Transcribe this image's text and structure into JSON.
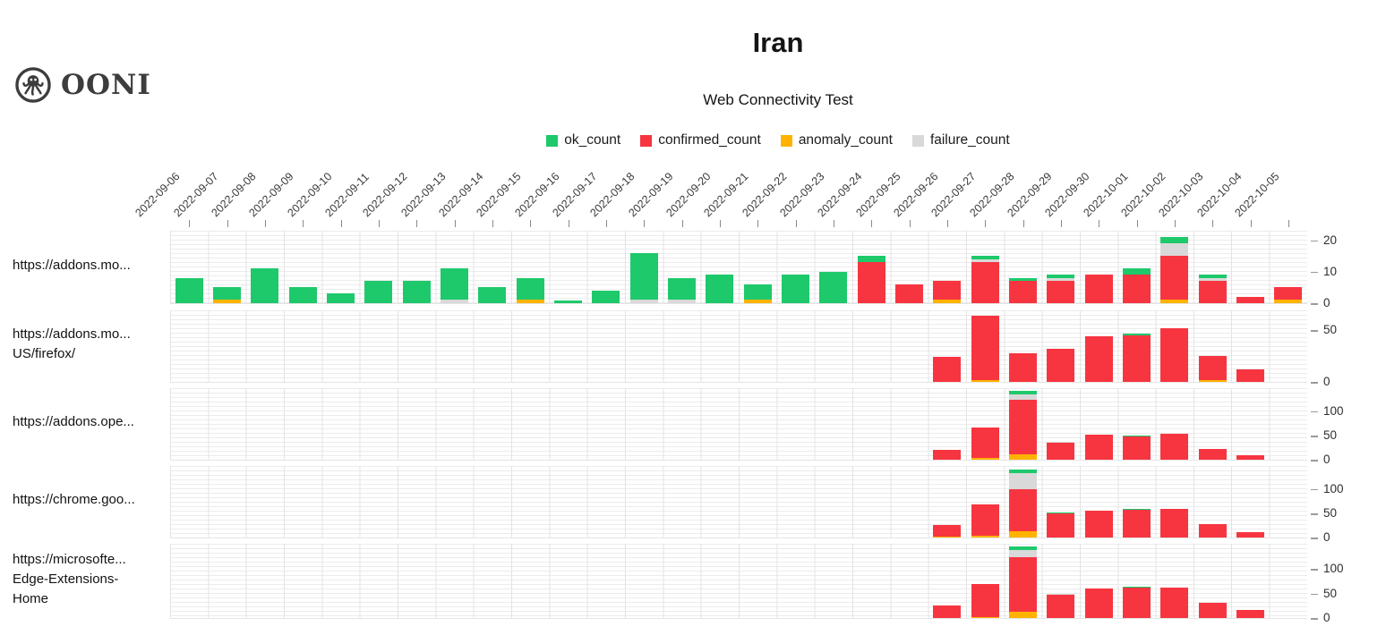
{
  "header": {
    "logo_text": "OONI",
    "title": "Iran",
    "subtitle": "Web Connectivity Test"
  },
  "legend": [
    {
      "label": "ok_count",
      "color": "#1ec96b"
    },
    {
      "label": "confirmed_count",
      "color": "#f73540"
    },
    {
      "label": "anomaly_count",
      "color": "#ffb300"
    },
    {
      "label": "failure_count",
      "color": "#d9d9d9"
    }
  ],
  "chart_data": {
    "type": "bar",
    "stacked": true,
    "grid": true,
    "legend_position": "top",
    "title": "Iran",
    "subtitle": "Web Connectivity Test",
    "x_label": "",
    "y_label": "",
    "x": [
      "2022-09-06",
      "2022-09-07",
      "2022-09-08",
      "2022-09-09",
      "2022-09-10",
      "2022-09-11",
      "2022-09-12",
      "2022-09-13",
      "2022-09-14",
      "2022-09-15",
      "2022-09-16",
      "2022-09-17",
      "2022-09-18",
      "2022-09-19",
      "2022-09-20",
      "2022-09-21",
      "2022-09-22",
      "2022-09-23",
      "2022-09-24",
      "2022-09-25",
      "2022-09-26",
      "2022-09-27",
      "2022-09-28",
      "2022-09-29",
      "2022-09-30",
      "2022-10-01",
      "2022-10-02",
      "2022-10-03",
      "2022-10-04",
      "2022-10-05"
    ],
    "series_order": [
      "ok_count",
      "confirmed_count",
      "anomaly_count",
      "failure_count"
    ],
    "stack_order": [
      "anomaly_count",
      "confirmed_count",
      "failure_count",
      "ok_count"
    ],
    "series_colors": {
      "ok_count": "#1ec96b",
      "confirmed_count": "#f73540",
      "anomaly_count": "#ffb300",
      "failure_count": "#d9d9d9"
    },
    "rows": [
      {
        "label_lines": [
          "https://addons.mo..."
        ],
        "ylim": [
          0,
          23
        ],
        "yticks": [
          0,
          10,
          20
        ],
        "values": [
          [
            8,
            0,
            0,
            0
          ],
          [
            4,
            0,
            1,
            0
          ],
          [
            11,
            0,
            0,
            0
          ],
          [
            5,
            0,
            0,
            0
          ],
          [
            3,
            0,
            0,
            0
          ],
          [
            7,
            0,
            0,
            0
          ],
          [
            7,
            0,
            0,
            0
          ],
          [
            10,
            0,
            0,
            1
          ],
          [
            5,
            0,
            0,
            0
          ],
          [
            7,
            0,
            1,
            0
          ],
          [
            1,
            0,
            0,
            0
          ],
          [
            4,
            0,
            0,
            0
          ],
          [
            15,
            0,
            0,
            1
          ],
          [
            7,
            0,
            0,
            1
          ],
          [
            9,
            0,
            0,
            0
          ],
          [
            5,
            0,
            1,
            0
          ],
          [
            9,
            0,
            0,
            0
          ],
          [
            10,
            0,
            0,
            0
          ],
          [
            2,
            13,
            0,
            0
          ],
          [
            0,
            6,
            0,
            0
          ],
          [
            0,
            6,
            1,
            0
          ],
          [
            1,
            13,
            0,
            1
          ],
          [
            1,
            7,
            0,
            0
          ],
          [
            1,
            7,
            0,
            1
          ],
          [
            0,
            9,
            0,
            0
          ],
          [
            2,
            9,
            0,
            0
          ],
          [
            2,
            14,
            1,
            4
          ],
          [
            1,
            7,
            0,
            1
          ],
          [
            0,
            2,
            0,
            0
          ],
          [
            0,
            4,
            1,
            0
          ]
        ]
      },
      {
        "label_lines": [
          "https://addons.mo...",
          "US/firefox/"
        ],
        "ylim": [
          0,
          69
        ],
        "yticks": [
          0,
          50
        ],
        "values": [
          null,
          null,
          null,
          null,
          null,
          null,
          null,
          null,
          null,
          null,
          null,
          null,
          null,
          null,
          null,
          null,
          null,
          null,
          null,
          null,
          [
            0,
            24,
            0,
            0
          ],
          [
            0,
            62,
            2,
            0
          ],
          [
            0,
            28,
            0,
            0
          ],
          [
            0,
            32,
            0,
            0
          ],
          [
            0,
            44,
            0,
            0
          ],
          [
            2,
            45,
            0,
            0
          ],
          [
            0,
            52,
            0,
            0
          ],
          [
            0,
            23,
            2,
            0
          ],
          [
            0,
            12,
            0,
            0
          ],
          null
        ]
      },
      {
        "label_lines": [
          "https://addons.ope..."
        ],
        "ylim": [
          0,
          148
        ],
        "yticks": [
          0,
          50,
          100
        ],
        "values": [
          null,
          null,
          null,
          null,
          null,
          null,
          null,
          null,
          null,
          null,
          null,
          null,
          null,
          null,
          null,
          null,
          null,
          null,
          null,
          null,
          [
            0,
            20,
            0,
            0
          ],
          [
            0,
            63,
            4,
            0
          ],
          [
            7,
            112,
            11,
            12
          ],
          [
            0,
            37,
            0,
            1
          ],
          [
            0,
            51,
            0,
            0
          ],
          [
            2,
            48,
            0,
            0
          ],
          [
            0,
            53,
            0,
            0
          ],
          [
            0,
            22,
            0,
            0
          ],
          [
            0,
            9,
            0,
            0
          ],
          null
        ]
      },
      {
        "label_lines": [
          "https://chrome.goo..."
        ],
        "ylim": [
          0,
          148
        ],
        "yticks": [
          0,
          50,
          100
        ],
        "values": [
          null,
          null,
          null,
          null,
          null,
          null,
          null,
          null,
          null,
          null,
          null,
          null,
          null,
          null,
          null,
          null,
          null,
          null,
          null,
          null,
          [
            0,
            24,
            2,
            0
          ],
          [
            0,
            65,
            3,
            0
          ],
          [
            7,
            88,
            12,
            33
          ],
          [
            2,
            49,
            0,
            0
          ],
          [
            0,
            56,
            0,
            0
          ],
          [
            2,
            57,
            0,
            0
          ],
          [
            0,
            60,
            0,
            0
          ],
          [
            0,
            27,
            0,
            0
          ],
          [
            0,
            12,
            0,
            0
          ],
          null
        ]
      },
      {
        "label_lines": [
          "https://microsofte...",
          "Edge-Extensions-",
          "Home"
        ],
        "ylim": [
          0,
          151
        ],
        "yticks": [
          0,
          50,
          100
        ],
        "values": [
          null,
          null,
          null,
          null,
          null,
          null,
          null,
          null,
          null,
          null,
          null,
          null,
          null,
          null,
          null,
          null,
          null,
          null,
          null,
          null,
          [
            0,
            26,
            0,
            0
          ],
          [
            0,
            68,
            2,
            0
          ],
          [
            7,
            110,
            13,
            15
          ],
          [
            0,
            48,
            0,
            1
          ],
          [
            0,
            60,
            0,
            0
          ],
          [
            2,
            62,
            0,
            0
          ],
          [
            0,
            62,
            0,
            0
          ],
          [
            0,
            31,
            0,
            0
          ],
          [
            0,
            16,
            0,
            0
          ],
          null
        ]
      }
    ]
  }
}
